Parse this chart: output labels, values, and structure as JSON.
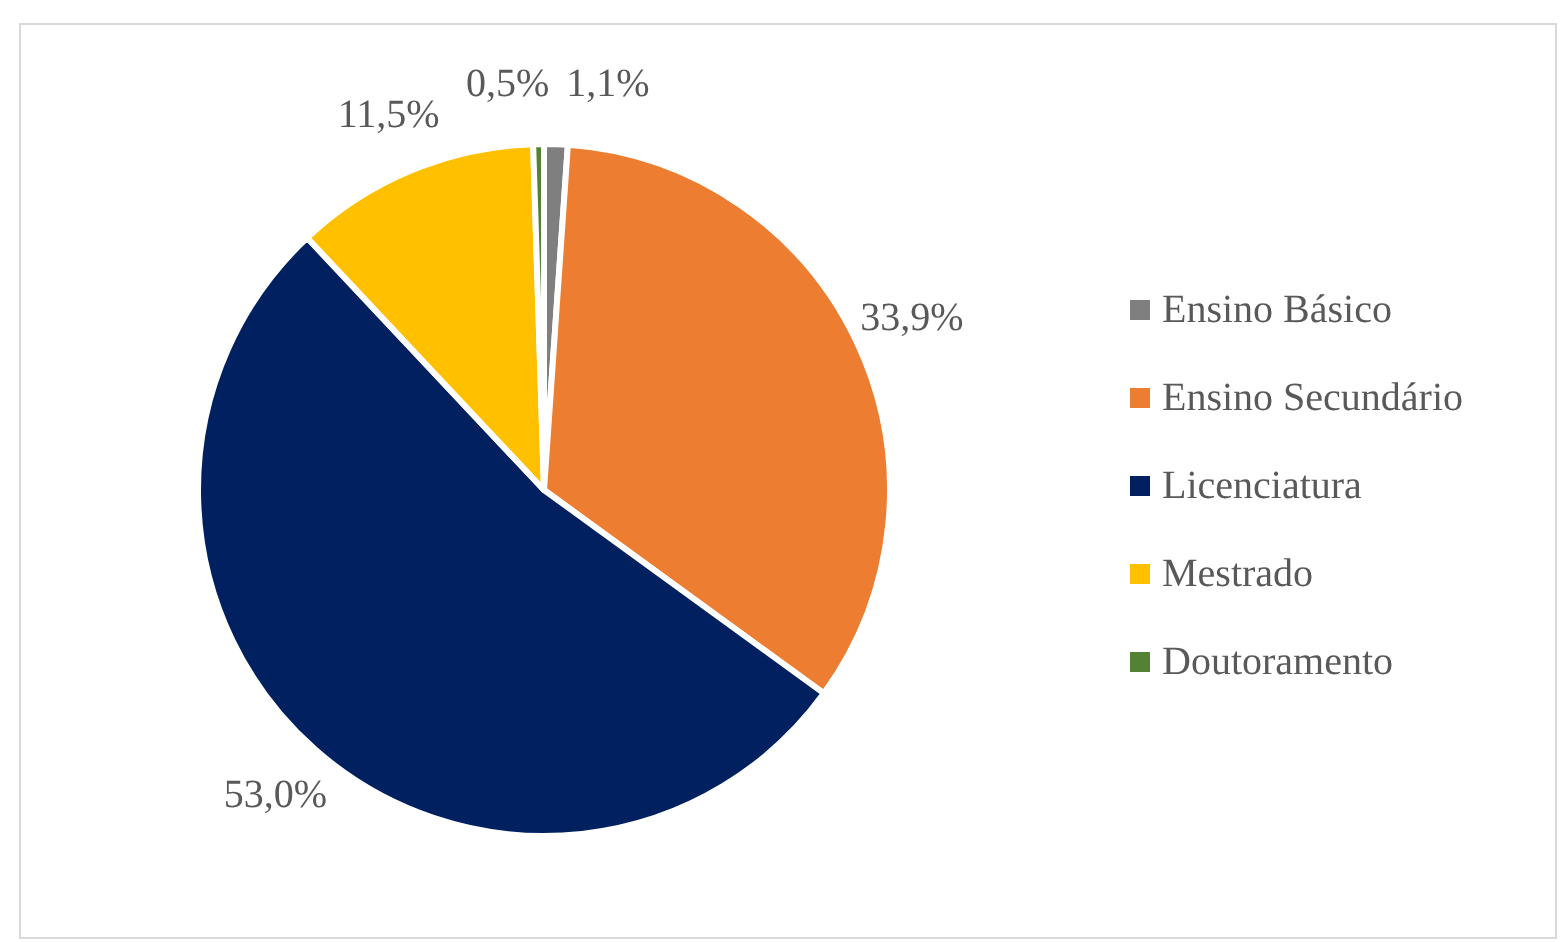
{
  "chart_data": {
    "type": "pie",
    "categories": [
      "Ensino Básico",
      "Ensino Secundário",
      "Licenciatura",
      "Mestrado",
      "Doutoramento"
    ],
    "values": [
      1.1,
      33.9,
      53.0,
      11.5,
      0.5
    ],
    "value_labels": [
      "1,1%",
      "33,9%",
      "53,0%",
      "11,5%",
      "0,5%"
    ],
    "colors": [
      "#7f7f7f",
      "#ed7d31",
      "#002060",
      "#ffc000",
      "#548235"
    ],
    "legend": "right"
  }
}
